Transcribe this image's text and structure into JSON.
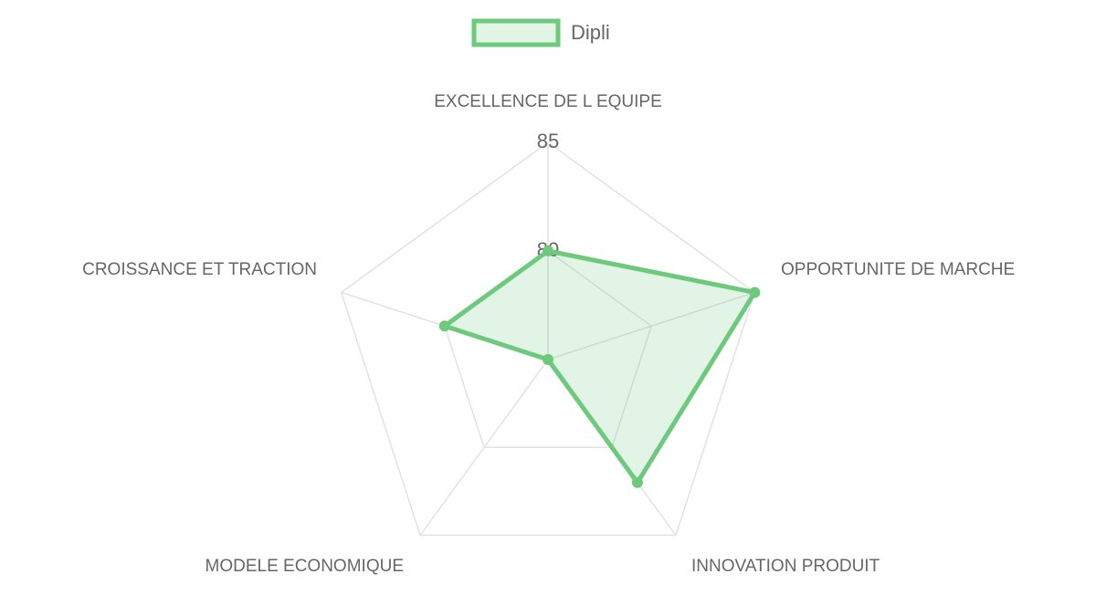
{
  "chart_data": {
    "type": "radar",
    "categories": [
      "EXCELLENCE DE L EQUIPE",
      "OPPORTUNITE DE MARCHE",
      "INNOVATION PRODUIT",
      "MODELE ECONOMIQUE",
      "CROISSANCE ET TRACTION"
    ],
    "series": [
      {
        "name": "Dipli",
        "color": "#6dc97b",
        "values": [
          80,
          85,
          82,
          75,
          80
        ]
      }
    ],
    "ylim": [
      75,
      85
    ],
    "yticks": [
      80,
      85
    ],
    "grid": true,
    "legend": "top"
  }
}
